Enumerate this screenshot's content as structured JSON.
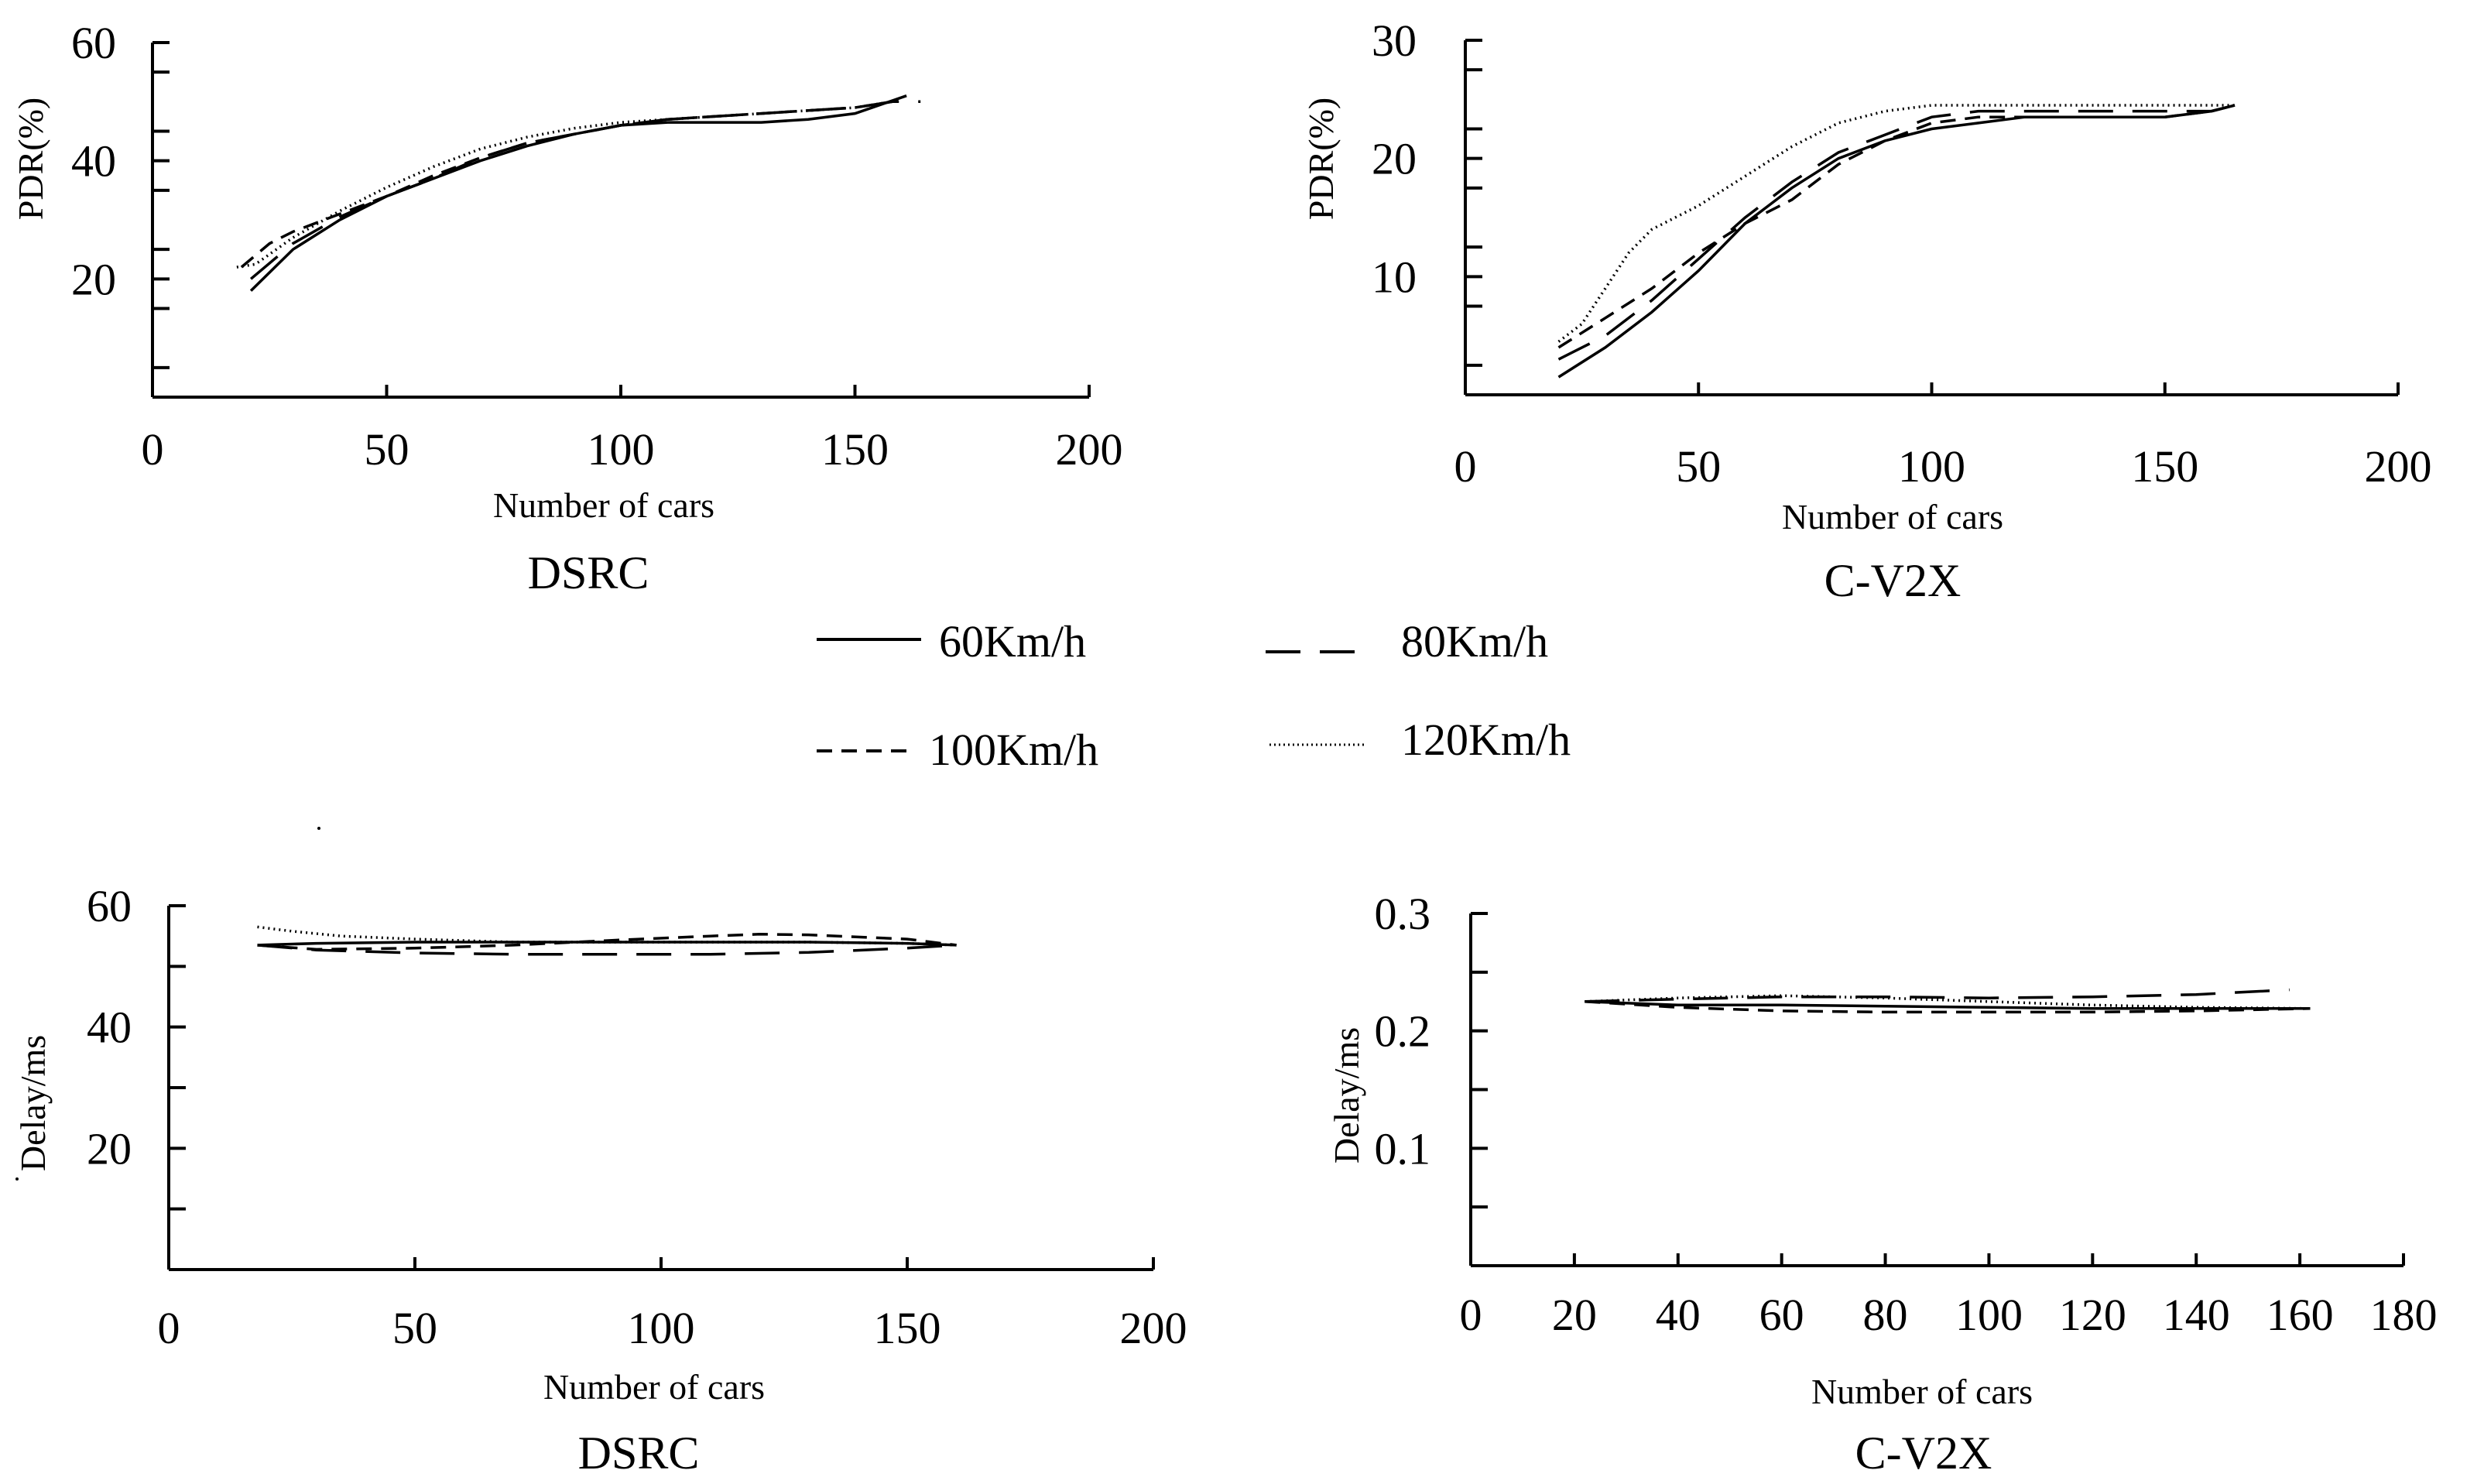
{
  "legend": {
    "items": [
      {
        "label": "60Km/h",
        "style": "solid"
      },
      {
        "label": "80Km/h",
        "style": "longdash"
      },
      {
        "label": "100Km/h",
        "style": "dash"
      },
      {
        "label": "120Km/h",
        "style": "dot"
      }
    ]
  },
  "chart_data": [
    {
      "type": "line",
      "title": "DSRC",
      "xlabel": "Number of cars",
      "ylabel": "PDR(%)",
      "xlim": [
        0,
        200
      ],
      "ylim": [
        0,
        60
      ],
      "xticks": [
        0,
        50,
        100,
        150,
        200
      ],
      "xticklabels": [
        "0",
        "50",
        "100",
        "150",
        "200"
      ],
      "yticks": [
        20,
        40,
        60
      ],
      "yticklabels": [
        "20",
        "40",
        "60"
      ],
      "series": [
        {
          "name": "60Km/h",
          "x": [
            21,
            30,
            40,
            50,
            60,
            70,
            80,
            90,
            100,
            110,
            120,
            130,
            140,
            150,
            161
          ],
          "y": [
            18,
            25,
            30,
            34,
            37,
            40,
            42.5,
            44.5,
            46,
            46.5,
            46.5,
            46.5,
            47,
            48,
            51
          ]
        },
        {
          "name": "80Km/h",
          "x": [
            21,
            30,
            40,
            50,
            60,
            70,
            80,
            90,
            100,
            110,
            120,
            130,
            140,
            150,
            158,
            164
          ],
          "y": [
            20,
            26,
            30.5,
            34,
            37,
            40.5,
            43,
            44.5,
            46,
            47,
            47.5,
            48,
            48.5,
            49,
            50,
            50
          ]
        },
        {
          "name": "100Km/h",
          "x": [
            19,
            25,
            30,
            40,
            50,
            60,
            70,
            80,
            90,
            100,
            110,
            120,
            130,
            140,
            150,
            158
          ],
          "y": [
            22,
            26,
            28,
            31,
            34,
            37.5,
            40.5,
            43,
            44.5,
            46,
            47,
            47.5,
            48,
            48.5,
            49,
            50
          ]
        },
        {
          "name": "120Km/h",
          "x": [
            18,
            22,
            30,
            40,
            50,
            60,
            70,
            80,
            90,
            100,
            110,
            120,
            130,
            140,
            150,
            158
          ],
          "y": [
            22,
            22.5,
            27,
            31.5,
            35.5,
            39,
            42,
            44,
            45.5,
            46.5,
            47,
            47.5,
            48,
            48.5,
            49,
            50
          ]
        }
      ]
    },
    {
      "type": "line",
      "title": "C-V2X",
      "xlabel": "Number of cars",
      "ylabel": "PDR(%)",
      "xlim": [
        0,
        200
      ],
      "ylim": [
        0,
        30
      ],
      "xticks": [
        0,
        50,
        100,
        150,
        200
      ],
      "xticklabels": [
        "0",
        "50",
        "100",
        "150",
        "200"
      ],
      "yticks": [
        10,
        20,
        30
      ],
      "yticklabels": [
        "10",
        "20",
        "30"
      ],
      "series": [
        {
          "name": "60Km/h",
          "x": [
            20,
            30,
            40,
            50,
            60,
            70,
            80,
            90,
            100,
            110,
            120,
            130,
            140,
            150,
            160,
            165
          ],
          "y": [
            1.5,
            4,
            7,
            10.5,
            14.5,
            17.5,
            20,
            21.5,
            22.5,
            23,
            23.5,
            23.5,
            23.5,
            23.5,
            24,
            24.5
          ]
        },
        {
          "name": "80Km/h",
          "x": [
            20,
            30,
            40,
            50,
            60,
            70,
            80,
            90,
            100,
            110,
            120,
            130,
            140,
            150,
            160,
            165
          ],
          "y": [
            3,
            5,
            8,
            11.5,
            15,
            18,
            20.5,
            22,
            23.5,
            24,
            24,
            24,
            24,
            24,
            24,
            24.5
          ]
        },
        {
          "name": "100Km/h",
          "x": [
            20,
            30,
            40,
            50,
            60,
            70,
            80,
            90,
            100,
            110,
            120,
            130,
            140,
            150,
            160,
            165
          ],
          "y": [
            4,
            6.5,
            9,
            12,
            14.5,
            16.5,
            19.5,
            21.5,
            23,
            23.5,
            23.5,
            23.5,
            23.5,
            23.5,
            24,
            24.5
          ]
        },
        {
          "name": "120Km/h",
          "x": [
            20,
            25,
            30,
            35,
            40,
            50,
            60,
            70,
            80,
            90,
            100,
            110,
            120,
            130,
            140,
            150,
            160,
            165
          ],
          "y": [
            4.5,
            6,
            9,
            12,
            14,
            16,
            18.5,
            21,
            23,
            24,
            24.5,
            24.5,
            24.5,
            24.5,
            24.5,
            24.5,
            24.5,
            24.5
          ]
        }
      ]
    },
    {
      "type": "line",
      "title": "DSRC",
      "xlabel": "Number of cars",
      "ylabel": "Delay/ms",
      "xlim": [
        0,
        200
      ],
      "ylim": [
        0,
        60
      ],
      "xticks": [
        0,
        50,
        100,
        150,
        200
      ],
      "xticklabels": [
        "0",
        "50",
        "100",
        "150",
        "200"
      ],
      "yticks": [
        20,
        40,
        60
      ],
      "yticklabels": [
        "20",
        "40",
        "60"
      ],
      "series": [
        {
          "name": "60Km/h",
          "x": [
            18,
            30,
            50,
            70,
            90,
            110,
            130,
            150,
            160
          ],
          "y": [
            53.5,
            53.8,
            54,
            54,
            54,
            54,
            54,
            53.8,
            53.5
          ]
        },
        {
          "name": "80Km/h",
          "x": [
            18,
            30,
            50,
            70,
            90,
            110,
            130,
            150,
            160
          ],
          "y": [
            53.5,
            52.7,
            52.2,
            52,
            52,
            52,
            52.3,
            53,
            53.5
          ]
        },
        {
          "name": "100Km/h",
          "x": [
            18,
            30,
            50,
            70,
            90,
            110,
            120,
            130,
            150,
            160
          ],
          "y": [
            53.5,
            52.8,
            53,
            53.5,
            54.3,
            55,
            55.3,
            55.2,
            54.5,
            53.5
          ]
        },
        {
          "name": "120Km/h",
          "x": [
            18,
            25,
            35,
            50,
            70,
            90,
            110,
            130,
            150,
            160
          ],
          "y": [
            56.5,
            55.8,
            55,
            54.5,
            54,
            54,
            54,
            54,
            53.8,
            53.5
          ]
        }
      ]
    },
    {
      "type": "line",
      "title": "C-V2X",
      "xlabel": "Number of cars",
      "ylabel": "Delay/ms",
      "xlim": [
        0,
        180
      ],
      "ylim": [
        0,
        0.3
      ],
      "xticks": [
        0,
        20,
        40,
        60,
        80,
        100,
        120,
        140,
        160,
        180
      ],
      "xticklabels": [
        "0",
        "20",
        "40",
        "60",
        "80",
        "100",
        "120",
        "140",
        "160",
        "180"
      ],
      "yticks": [
        0.1,
        0.2,
        0.3
      ],
      "yticklabels": [
        "0.1",
        "0.2",
        "0.3"
      ],
      "series": [
        {
          "name": "60Km/h",
          "x": [
            22,
            40,
            60,
            80,
            100,
            120,
            140,
            162
          ],
          "y": [
            0.225,
            0.222,
            0.222,
            0.221,
            0.22,
            0.219,
            0.219,
            0.219
          ]
        },
        {
          "name": "80Km/h",
          "x": [
            22,
            40,
            60,
            80,
            100,
            120,
            140,
            158
          ],
          "y": [
            0.225,
            0.227,
            0.229,
            0.229,
            0.228,
            0.229,
            0.231,
            0.235
          ]
        },
        {
          "name": "100Km/h",
          "x": [
            22,
            40,
            60,
            80,
            100,
            120,
            140,
            162
          ],
          "y": [
            0.225,
            0.22,
            0.217,
            0.216,
            0.216,
            0.216,
            0.217,
            0.219
          ]
        },
        {
          "name": "120Km/h",
          "x": [
            22,
            40,
            60,
            80,
            100,
            120,
            140,
            162
          ],
          "y": [
            0.225,
            0.228,
            0.23,
            0.228,
            0.225,
            0.222,
            0.22,
            0.219
          ]
        }
      ]
    }
  ]
}
